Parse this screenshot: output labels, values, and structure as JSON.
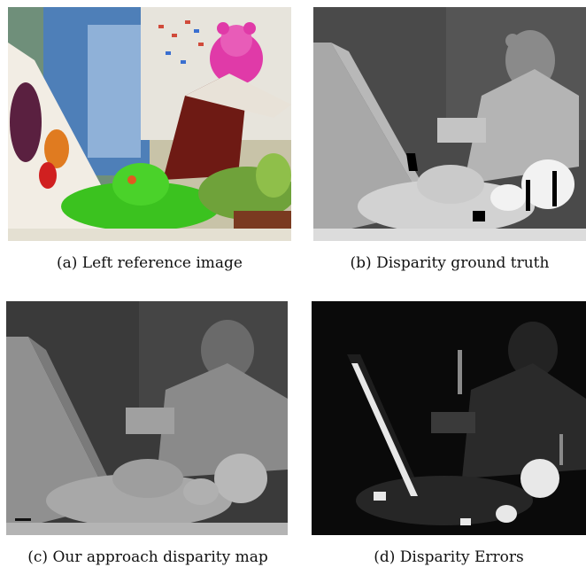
{
  "figure": {
    "panels": [
      {
        "id": "a",
        "caption": "(a) Left reference image"
      },
      {
        "id": "b",
        "caption": "(b) Disparity ground truth"
      },
      {
        "id": "c",
        "caption": "(c) Our approach disparity map"
      },
      {
        "id": "d",
        "caption": "(d) Disparity Errors"
      }
    ]
  }
}
